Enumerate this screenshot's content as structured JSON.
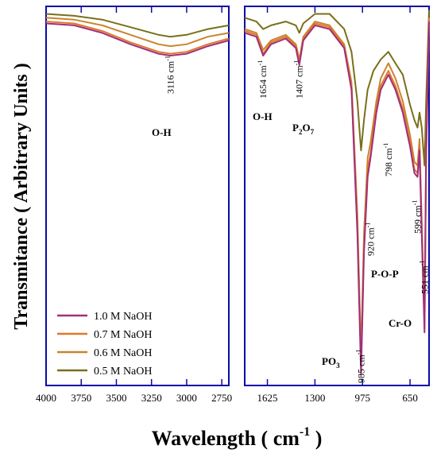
{
  "chart_data": {
    "type": "line",
    "xlabel_main": "Wavelength (",
    "xlabel_unit": " cm",
    "xlabel_sup": "-1",
    "xlabel_close": " )",
    "ylabel": "Transmitance ( Arbitrary Units )",
    "x_reversed": true,
    "axis_break": true,
    "left_panel": {
      "xlim": [
        2700,
        4000
      ],
      "ticks": [
        4000,
        3750,
        3500,
        3250,
        3000,
        2750
      ],
      "tick_labels": [
        "4000",
        "3750",
        "3500",
        "3250",
        "3000",
        "2750"
      ]
    },
    "right_panel": {
      "xlim": [
        520,
        1780
      ],
      "ticks": [
        1625,
        1300,
        975,
        650
      ],
      "tick_labels": [
        "1625",
        "1300",
        "975",
        "650"
      ]
    },
    "ylim": [
      0,
      100
    ],
    "legend": {
      "placement": "bottom-left",
      "entries": [
        {
          "label": "1.0 M NaOH",
          "color": "#a0307a"
        },
        {
          "label": "0.7 M NaOH",
          "color": "#e0782a"
        },
        {
          "label": "0.6 M NaOH",
          "color": "#c9842d"
        },
        {
          "label": "0.5 M NaOH",
          "color": "#7a6f1a"
        }
      ]
    },
    "series": [
      {
        "name": "1.0 M NaOH",
        "color": "#a0307a",
        "left": [
          [
            4000,
            95.5
          ],
          [
            3800,
            95
          ],
          [
            3600,
            93
          ],
          [
            3400,
            90
          ],
          [
            3200,
            87.5
          ],
          [
            3116,
            87
          ],
          [
            3000,
            87.5
          ],
          [
            2850,
            89.5
          ],
          [
            2700,
            91
          ]
        ],
        "right": [
          [
            1780,
            93
          ],
          [
            1700,
            92
          ],
          [
            1654,
            87
          ],
          [
            1600,
            90
          ],
          [
            1500,
            91.5
          ],
          [
            1430,
            89
          ],
          [
            1407,
            84.5
          ],
          [
            1380,
            91
          ],
          [
            1300,
            95
          ],
          [
            1200,
            94
          ],
          [
            1100,
            89
          ],
          [
            1050,
            78
          ],
          [
            1010,
            40
          ],
          [
            985,
            3
          ],
          [
            965,
            35
          ],
          [
            940,
            55
          ],
          [
            920,
            60
          ],
          [
            880,
            72
          ],
          [
            850,
            78
          ],
          [
            798,
            82
          ],
          [
            750,
            78
          ],
          [
            700,
            72
          ],
          [
            650,
            63
          ],
          [
            620,
            56
          ],
          [
            599,
            55
          ],
          [
            585,
            62
          ],
          [
            570,
            40
          ],
          [
            551,
            14
          ],
          [
            540,
            60
          ],
          [
            520,
            96
          ]
        ]
      },
      {
        "name": "0.7 M NaOH",
        "color": "#e0782a",
        "left": [
          [
            4000,
            96
          ],
          [
            3800,
            95.5
          ],
          [
            3600,
            93.5
          ],
          [
            3400,
            90.5
          ],
          [
            3200,
            88
          ],
          [
            3116,
            87.5
          ],
          [
            3000,
            88
          ],
          [
            2850,
            90
          ],
          [
            2700,
            91.5
          ]
        ],
        "right": [
          [
            1780,
            93.5
          ],
          [
            1700,
            92.5
          ],
          [
            1654,
            87.5
          ],
          [
            1600,
            90.5
          ],
          [
            1500,
            92
          ],
          [
            1430,
            89.5
          ],
          [
            1407,
            85
          ],
          [
            1380,
            91.5
          ],
          [
            1300,
            95.5
          ],
          [
            1200,
            94.5
          ],
          [
            1100,
            89.5
          ],
          [
            1050,
            79
          ],
          [
            1010,
            42
          ],
          [
            985,
            5
          ],
          [
            965,
            37
          ],
          [
            940,
            57
          ],
          [
            920,
            61
          ],
          [
            880,
            73
          ],
          [
            850,
            79
          ],
          [
            798,
            83
          ],
          [
            750,
            79
          ],
          [
            700,
            73
          ],
          [
            650,
            64
          ],
          [
            620,
            57
          ],
          [
            599,
            56
          ],
          [
            585,
            63
          ],
          [
            570,
            41
          ],
          [
            551,
            15
          ],
          [
            540,
            61
          ],
          [
            520,
            96.5
          ]
        ]
      },
      {
        "name": "0.6 M NaOH",
        "color": "#c9842d",
        "left": [
          [
            4000,
            97
          ],
          [
            3800,
            96.5
          ],
          [
            3600,
            95
          ],
          [
            3400,
            92.5
          ],
          [
            3200,
            90
          ],
          [
            3116,
            89.5
          ],
          [
            3000,
            90
          ],
          [
            2850,
            92
          ],
          [
            2700,
            93
          ]
        ],
        "right": [
          [
            1780,
            94
          ],
          [
            1700,
            93
          ],
          [
            1654,
            88.5
          ],
          [
            1600,
            91
          ],
          [
            1500,
            92.5
          ],
          [
            1430,
            90
          ],
          [
            1407,
            86
          ],
          [
            1380,
            92
          ],
          [
            1300,
            96
          ],
          [
            1200,
            95
          ],
          [
            1100,
            90
          ],
          [
            1050,
            80
          ],
          [
            1010,
            45
          ],
          [
            985,
            8
          ],
          [
            965,
            40
          ],
          [
            940,
            60
          ],
          [
            920,
            64
          ],
          [
            880,
            75
          ],
          [
            850,
            81
          ],
          [
            798,
            85
          ],
          [
            750,
            81
          ],
          [
            700,
            75
          ],
          [
            650,
            66
          ],
          [
            620,
            59
          ],
          [
            599,
            58
          ],
          [
            585,
            65
          ],
          [
            570,
            43
          ],
          [
            551,
            17
          ],
          [
            540,
            62
          ],
          [
            520,
            97
          ]
        ]
      },
      {
        "name": "0.5 M NaOH",
        "color": "#7a6f1a",
        "left": [
          [
            4000,
            98
          ],
          [
            3800,
            97.5
          ],
          [
            3600,
            96.5
          ],
          [
            3400,
            94.5
          ],
          [
            3200,
            92.5
          ],
          [
            3116,
            92
          ],
          [
            3000,
            92.5
          ],
          [
            2850,
            94
          ],
          [
            2700,
            95
          ]
        ],
        "right": [
          [
            1780,
            97
          ],
          [
            1700,
            96
          ],
          [
            1654,
            94
          ],
          [
            1600,
            95
          ],
          [
            1500,
            96
          ],
          [
            1430,
            95
          ],
          [
            1407,
            93
          ],
          [
            1380,
            95.5
          ],
          [
            1300,
            98
          ],
          [
            1200,
            98
          ],
          [
            1150,
            96
          ],
          [
            1100,
            94
          ],
          [
            1050,
            88
          ],
          [
            1010,
            75
          ],
          [
            985,
            62
          ],
          [
            965,
            70
          ],
          [
            940,
            78
          ],
          [
            900,
            83
          ],
          [
            850,
            86
          ],
          [
            798,
            88
          ],
          [
            750,
            85
          ],
          [
            700,
            82
          ],
          [
            650,
            74
          ],
          [
            620,
            70
          ],
          [
            599,
            68
          ],
          [
            585,
            72
          ],
          [
            570,
            68
          ],
          [
            551,
            58
          ],
          [
            540,
            75
          ],
          [
            520,
            99
          ]
        ]
      }
    ],
    "annotations": {
      "cm_unit": "cm",
      "cm_sup": "-1",
      "oh_label": "O-H",
      "p2o7_label": "P",
      "p2o7_sub1": "2",
      "p2o7_mid": "O",
      "p2o7_sub2": "7",
      "pop_label": "P-O-P",
      "cro_label": "Cr-O",
      "po3_label": "PO",
      "po3_sub": "3",
      "peaks": [
        {
          "text": "3116 ",
          "panel": "left",
          "x": 3116
        },
        {
          "text": "1654 ",
          "panel": "right",
          "x": 1654
        },
        {
          "text": "1407 ",
          "panel": "right",
          "x": 1407
        },
        {
          "text": "985 ",
          "panel": "right",
          "x": 985
        },
        {
          "text": "920 ",
          "panel": "right",
          "x": 920
        },
        {
          "text": "798 ",
          "panel": "right",
          "x": 798
        },
        {
          "text": "599 ",
          "panel": "right",
          "x": 599
        },
        {
          "text": "551 ",
          "panel": "right",
          "x": 551
        }
      ]
    }
  }
}
